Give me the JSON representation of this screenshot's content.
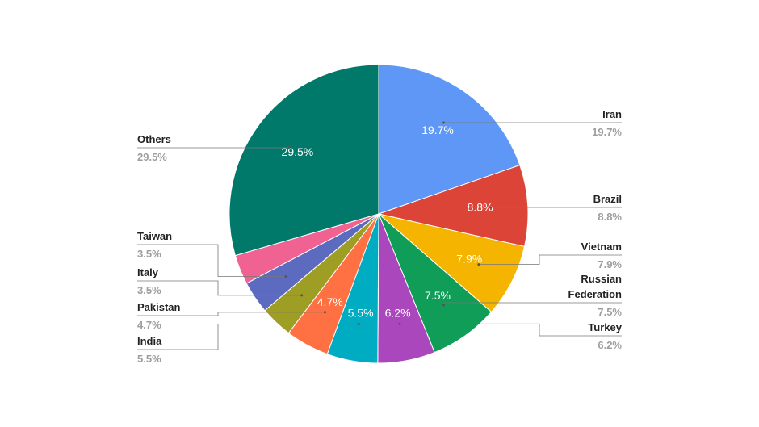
{
  "chart_data": {
    "type": "pie",
    "categories": [
      "Iran",
      "Brazil",
      "Vietnam",
      "Russian Federation",
      "Turkey",
      "India",
      "Pakistan",
      "Italy",
      "Taiwan",
      null,
      "Others"
    ],
    "values": [
      19.7,
      8.8,
      7.9,
      7.5,
      6.2,
      5.5,
      4.7,
      3.5,
      3.5,
      3.2,
      29.5
    ],
    "value_labels": [
      "19.7%",
      "8.8%",
      "7.9%",
      "7.5%",
      "6.2%",
      "5.5%",
      "4.7%",
      "3.5%",
      "3.5%",
      null,
      "29.5%"
    ],
    "colors": [
      "#5e97f6",
      "#db4437",
      "#f4b400",
      "#0f9d58",
      "#ab47bc",
      "#00acc1",
      "#ff7043",
      "#9e9d24",
      "#5c6bc0",
      "#f06292",
      "#00796b"
    ]
  }
}
